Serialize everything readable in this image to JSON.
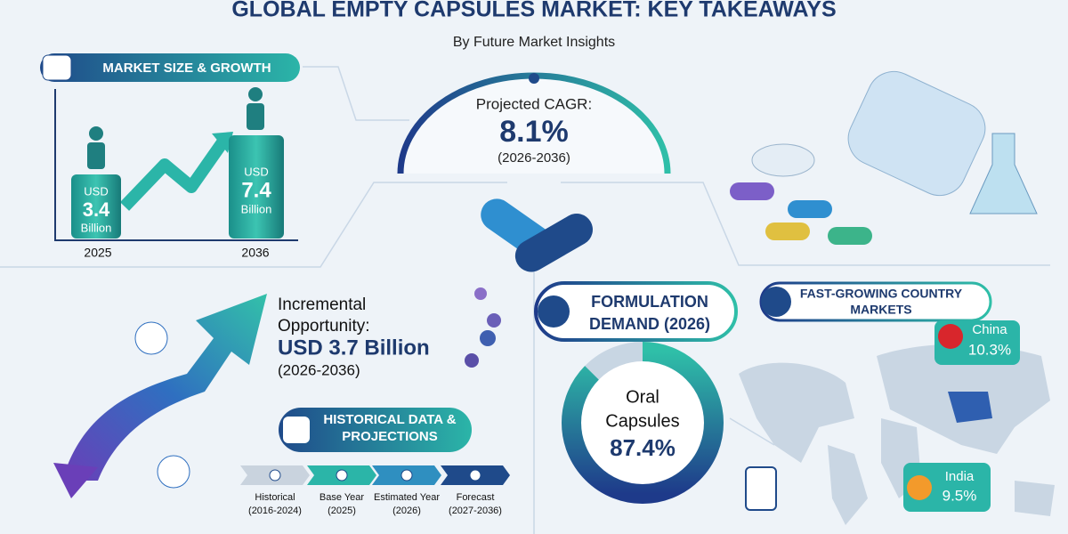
{
  "header": {
    "title": "GLOBAL EMPTY CAPSULES MARKET: KEY TAKEAWAYS",
    "subtitle": "By Future Market Insights"
  },
  "market_size": {
    "heading": "MARKET SIZE & GROWTH",
    "bars": [
      {
        "year": "2025",
        "currency": "USD",
        "value": "3.4",
        "unit": "Billion"
      },
      {
        "year": "2036",
        "currency": "USD",
        "value": "7.4",
        "unit": "Billion"
      }
    ]
  },
  "cagr": {
    "label": "Projected CAGR:",
    "value": "8.1%",
    "period": "(2026-2036)"
  },
  "incremental": {
    "label_lines": [
      "Incremental",
      "Opportunity:"
    ],
    "value": "USD 3.7 Billion",
    "period": "(2026-2036)"
  },
  "formulation": {
    "heading_lines": [
      "FORMULATION",
      "DEMAND (2026)"
    ],
    "segment_lines": [
      "Oral",
      "Capsules"
    ],
    "share": "87.4%"
  },
  "countries": {
    "heading_lines": [
      "FAST-GROWING COUNTRY",
      "MARKETS"
    ],
    "items": [
      {
        "name": "China",
        "cagr": "10.3%"
      },
      {
        "name": "India",
        "cagr": "9.5%"
      }
    ]
  },
  "historical": {
    "heading_lines": [
      "HISTORICAL DATA &",
      "PROJECTIONS"
    ],
    "steps": [
      {
        "name": "Historical",
        "period": "(2016-2024)"
      },
      {
        "name": "Base Year",
        "period": "(2025)"
      },
      {
        "name": "Estimated Year",
        "period": "(2026)"
      },
      {
        "name": "Forecast",
        "period": "(2027-2036)"
      }
    ]
  }
}
